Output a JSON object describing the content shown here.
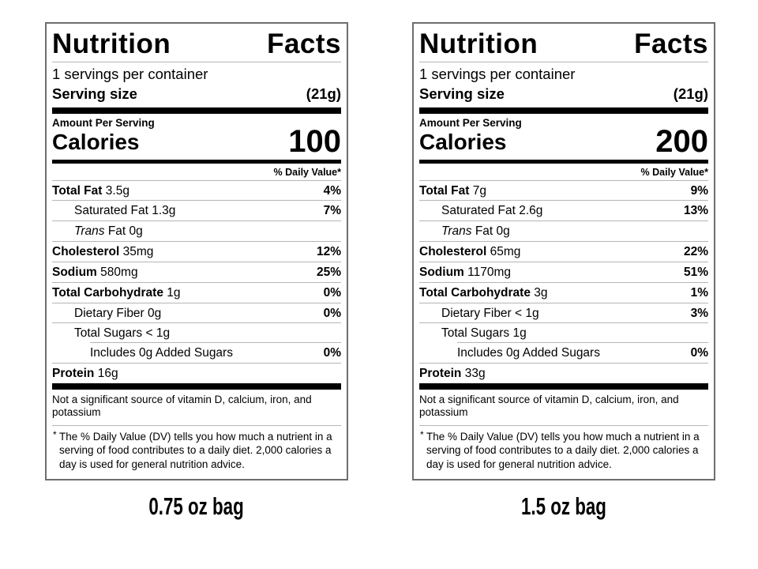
{
  "colors": {
    "background": "#ffffff",
    "text": "#000000",
    "label_border": "#6e6e6e",
    "hairline": "#b5b5b5",
    "thick_bar": "#000000"
  },
  "labels": [
    {
      "title_word_1": "Nutrition",
      "title_word_2": "Facts",
      "servings_per_container": "1 servings per container",
      "serving_size_label": "Serving size",
      "serving_size_value": "(21g)",
      "amount_per_serving": "Amount Per Serving",
      "calories_label": "Calories",
      "calories_value": "100",
      "daily_value_header": "% Daily Value*",
      "rows": [
        {
          "name": "Total Fat",
          "name_style": "bold",
          "amount": "3.5g",
          "dv": "4%",
          "indent": 0
        },
        {
          "name": "Saturated Fat",
          "name_style": "plain",
          "amount": "1.3g",
          "dv": "7%",
          "indent": 1
        },
        {
          "name": "Trans",
          "name_style": "italic",
          "amount": "Fat 0g",
          "dv": "",
          "indent": 1
        },
        {
          "name": "Cholesterol",
          "name_style": "bold",
          "amount": "35mg",
          "dv": "12%",
          "indent": 0
        },
        {
          "name": "Sodium",
          "name_style": "bold",
          "amount": "580mg",
          "dv": "25%",
          "indent": 0
        },
        {
          "name": "Total Carbohydrate",
          "name_style": "bold",
          "amount": "1g",
          "dv": "0%",
          "indent": 0
        },
        {
          "name": "Dietary Fiber",
          "name_style": "plain",
          "amount": "0g",
          "dv": "0%",
          "indent": 1
        },
        {
          "name": "Total Sugars",
          "name_style": "plain",
          "amount": "< 1g",
          "dv": "",
          "indent": 1,
          "rule_after": "indented"
        },
        {
          "name": "Includes 0g Added Sugars",
          "name_style": "plain",
          "amount": "",
          "dv": "0%",
          "indent": 2
        },
        {
          "name": "Protein",
          "name_style": "bold",
          "amount": "16g",
          "dv": "",
          "indent": 0,
          "rule_after": "none"
        }
      ],
      "not_significant": "Not a significant source of vitamin D, calcium, iron, and potassium",
      "footnote_marker": "*",
      "footnote": "The % Daily Value (DV) tells you how much a nutrient in a serving of food contributes to a daily diet. 2,000 calories a day is used for general nutrition advice.",
      "caption": "0.75 oz bag"
    },
    {
      "title_word_1": "Nutrition",
      "title_word_2": "Facts",
      "servings_per_container": "1 servings per container",
      "serving_size_label": "Serving size",
      "serving_size_value": "(21g)",
      "amount_per_serving": "Amount Per Serving",
      "calories_label": "Calories",
      "calories_value": "200",
      "daily_value_header": "% Daily Value*",
      "rows": [
        {
          "name": "Total Fat",
          "name_style": "bold",
          "amount": "7g",
          "dv": "9%",
          "indent": 0
        },
        {
          "name": "Saturated Fat",
          "name_style": "plain",
          "amount": "2.6g",
          "dv": "13%",
          "indent": 1
        },
        {
          "name": "Trans",
          "name_style": "italic",
          "amount": "Fat 0g",
          "dv": "",
          "indent": 1
        },
        {
          "name": "Cholesterol",
          "name_style": "bold",
          "amount": "65mg",
          "dv": "22%",
          "indent": 0
        },
        {
          "name": "Sodium",
          "name_style": "bold",
          "amount": "1170mg",
          "dv": "51%",
          "indent": 0
        },
        {
          "name": "Total Carbohydrate",
          "name_style": "bold",
          "amount": "3g",
          "dv": "1%",
          "indent": 0
        },
        {
          "name": "Dietary Fiber",
          "name_style": "plain",
          "amount": "< 1g",
          "dv": "3%",
          "indent": 1
        },
        {
          "name": "Total Sugars",
          "name_style": "plain",
          "amount": "1g",
          "dv": "",
          "indent": 1,
          "rule_after": "indented"
        },
        {
          "name": "Includes 0g Added Sugars",
          "name_style": "plain",
          "amount": "",
          "dv": "0%",
          "indent": 2
        },
        {
          "name": "Protein",
          "name_style": "bold",
          "amount": "33g",
          "dv": "",
          "indent": 0,
          "rule_after": "none"
        }
      ],
      "not_significant": "Not a significant source of vitamin D, calcium, iron, and potassium",
      "footnote_marker": "*",
      "footnote": "The % Daily Value (DV) tells you how much a nutrient in a serving of food contributes to a daily diet. 2,000 calories a day is used for general nutrition advice.",
      "caption": "1.5 oz bag"
    }
  ]
}
